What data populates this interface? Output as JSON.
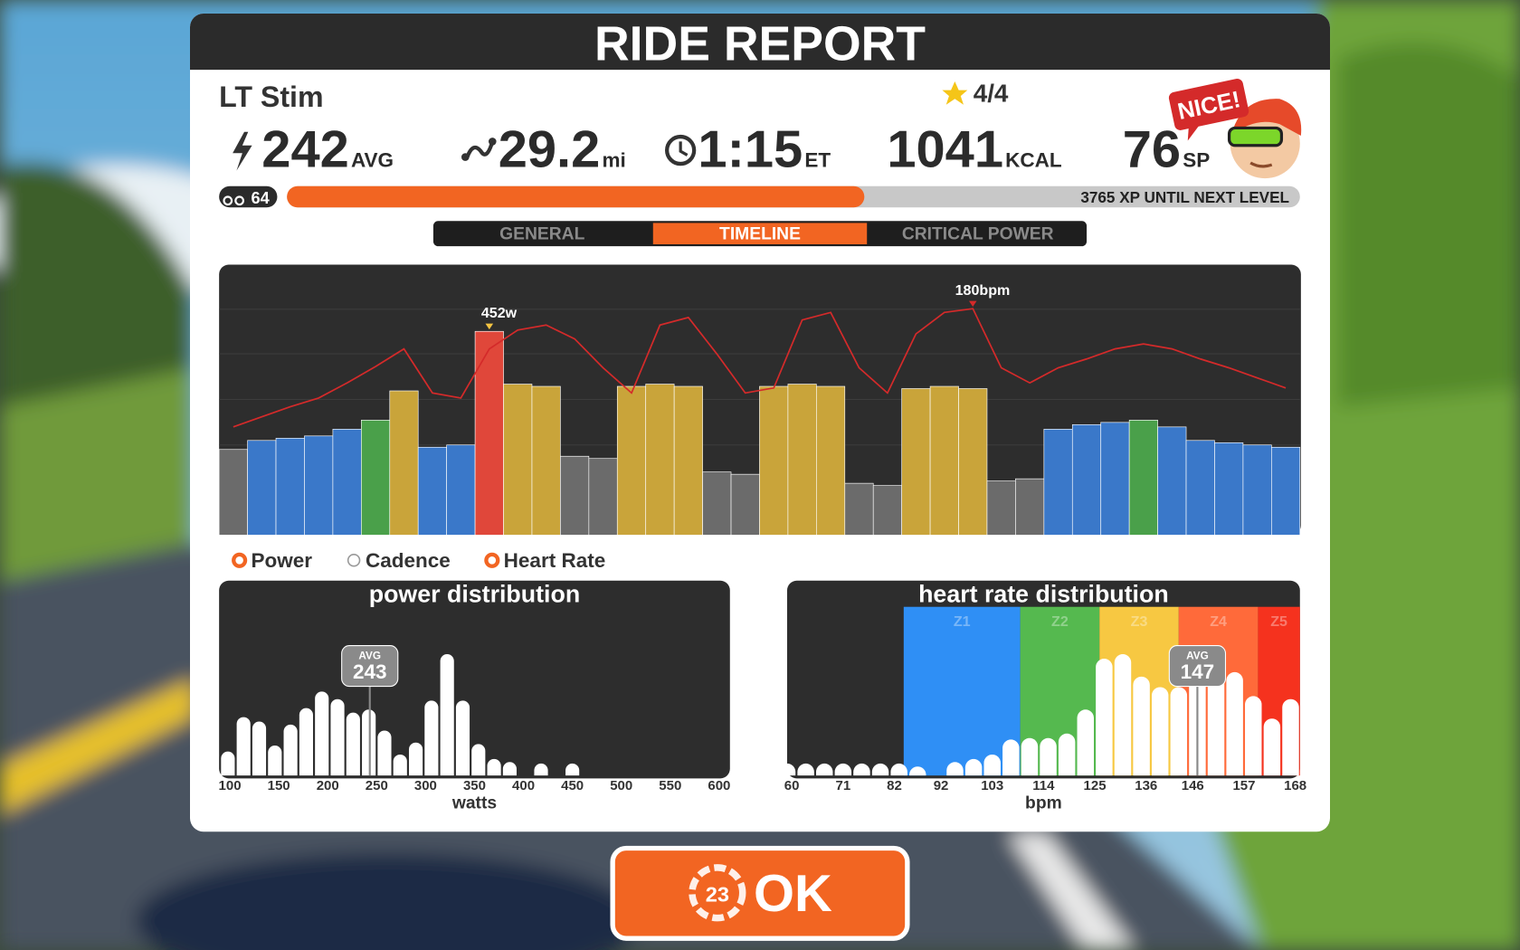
{
  "header": {
    "title": "RIDE REPORT"
  },
  "workout": {
    "name": "LT Stim",
    "stars": "4/4"
  },
  "stats": [
    {
      "value": 242,
      "unit": "AVG"
    },
    {
      "value": 29.2,
      "unit": "mi"
    },
    {
      "value": "1:15",
      "unit": "ET"
    },
    {
      "value": 1041,
      "unit": "KCAL"
    },
    {
      "value": 76,
      "unit": "SP"
    }
  ],
  "avatar": {
    "badge": "NICE!"
  },
  "level": {
    "level": 64,
    "progress": 0.57,
    "label": "3765 XP UNTIL NEXT LEVEL"
  },
  "tabs": [
    {
      "label": "GENERAL",
      "active": false
    },
    {
      "label": "TIMELINE",
      "active": true
    },
    {
      "label": "CRITICAL POWER",
      "active": false
    }
  ],
  "legend": [
    {
      "name": "Power",
      "checked": true
    },
    {
      "name": "Cadence",
      "checked": false
    },
    {
      "name": "Heart Rate",
      "checked": true
    }
  ],
  "chart_data": [
    {
      "type": "bar",
      "x": [
        0,
        2,
        4,
        6,
        8,
        10,
        12,
        14,
        16,
        18,
        20,
        22,
        24,
        26,
        28,
        30,
        32,
        34,
        36,
        38,
        40,
        42,
        44,
        46,
        48,
        50,
        52,
        54,
        56,
        58,
        60,
        62,
        64,
        66,
        68,
        70,
        72,
        74
      ],
      "xlim": [
        0,
        76
      ],
      "ylim": [
        0,
        600
      ],
      "y2lim": [
        0,
        215
      ],
      "series": [
        {
          "name": "Power",
          "values": [
            190,
            210,
            215,
            220,
            235,
            255,
            320,
            195,
            200,
            452,
            335,
            330,
            175,
            170,
            330,
            335,
            330,
            140,
            135,
            330,
            335,
            330,
            115,
            110,
            325,
            330,
            325,
            120,
            125,
            235,
            245,
            250,
            255,
            240,
            210,
            205,
            200,
            195
          ],
          "colors": [
            "#6b6b6b",
            "#3a78c9",
            "#3a78c9",
            "#3a78c9",
            "#3a78c9",
            "#4aa04a",
            "#c9a43a",
            "#3a78c9",
            "#3a78c9",
            "#e0473a",
            "#c9a43a",
            "#c9a43a",
            "#6b6b6b",
            "#6b6b6b",
            "#c9a43a",
            "#c9a43a",
            "#c9a43a",
            "#6b6b6b",
            "#6b6b6b",
            "#c9a43a",
            "#c9a43a",
            "#c9a43a",
            "#6b6b6b",
            "#6b6b6b",
            "#c9a43a",
            "#c9a43a",
            "#c9a43a",
            "#6b6b6b",
            "#6b6b6b",
            "#3a78c9",
            "#3a78c9",
            "#3a78c9",
            "#4aa04a",
            "#3a78c9",
            "#3a78c9",
            "#3a78c9",
            "#3a78c9",
            "#3a78c9"
          ]
        },
        {
          "name": "Heart Rate",
          "color": "#d42a2a",
          "axis": "y2",
          "values": [
            86,
            94,
            102,
            109,
            121,
            134,
            148,
            113,
            109,
            148,
            163,
            167,
            156,
            133,
            113,
            167,
            173,
            144,
            113,
            117,
            171,
            177,
            133,
            113,
            160,
            177,
            180,
            133,
            121,
            133,
            140,
            148,
            152,
            148,
            140,
            133,
            125,
            117
          ]
        }
      ],
      "annotations": [
        {
          "text": "452w",
          "x": 18,
          "y": 452,
          "color": "#f5c542"
        },
        {
          "text": "180bpm",
          "x": 52,
          "y": 180,
          "axis": "y2",
          "color": "#d42a2a"
        }
      ]
    },
    {
      "type": "histogram",
      "title": "power distribution",
      "x_label": "watts",
      "color": "#ffffff",
      "bins": [
        90,
        106,
        122,
        138,
        154,
        170,
        186,
        202,
        218,
        234,
        250,
        266,
        282,
        298,
        314,
        330,
        346,
        362,
        378,
        394,
        410,
        426,
        442,
        458
      ],
      "values": [
        1.6,
        3.9,
        3.6,
        2.0,
        3.4,
        4.5,
        5.6,
        5.1,
        4.2,
        4.4,
        3.0,
        1.4,
        2.2,
        5.0,
        8.1,
        5.0,
        2.1,
        1.1,
        0.9,
        0,
        0.8,
        0,
        0.8
      ],
      "xlim": [
        89,
        611
      ],
      "xticks": [
        100,
        150,
        200,
        250,
        300,
        350,
        400,
        450,
        500,
        550,
        600
      ],
      "ylim": [
        0,
        11
      ],
      "avg": {
        "label": "AVG",
        "value": 243
      }
    },
    {
      "type": "histogram",
      "title": "heart rate distribution",
      "x_label": "bpm",
      "color": "#ffffff",
      "bins": [
        57,
        61,
        65,
        69,
        73,
        77,
        81,
        85,
        89,
        93,
        97,
        101,
        105,
        109,
        113,
        117,
        121,
        125,
        129,
        133,
        137,
        141,
        145,
        149,
        153,
        157,
        161,
        165,
        169
      ],
      "values": [
        0.8,
        0.8,
        0.8,
        0.8,
        0.8,
        0.8,
        0.8,
        0.6,
        0,
        0.9,
        1.1,
        1.4,
        2.4,
        2.5,
        2.5,
        2.8,
        4.4,
        7.8,
        8.1,
        6.6,
        5.9,
        5.9,
        6.9,
        7.5,
        6.9,
        5.3,
        3.8,
        5.1
      ],
      "xlim": [
        59,
        169
      ],
      "xticks": [
        60,
        71,
        82,
        92,
        103,
        114,
        125,
        136,
        146,
        157,
        168
      ],
      "ylim": [
        0,
        11
      ],
      "zones": [
        {
          "label": "Z1",
          "from": 84,
          "to": 109,
          "color": "#2f8ff5"
        },
        {
          "label": "Z2",
          "from": 109,
          "to": 126,
          "color": "#55b94f"
        },
        {
          "label": "Z3",
          "from": 126,
          "to": 143,
          "color": "#f7c842"
        },
        {
          "label": "Z4",
          "from": 143,
          "to": 160,
          "color": "#ff6a3a"
        },
        {
          "label": "Z5",
          "from": 160,
          "to": 169,
          "color": "#f5321e"
        }
      ],
      "avg": {
        "label": "AVG",
        "value": 147
      }
    }
  ],
  "ok_button": {
    "countdown": 23,
    "label": "OK"
  }
}
